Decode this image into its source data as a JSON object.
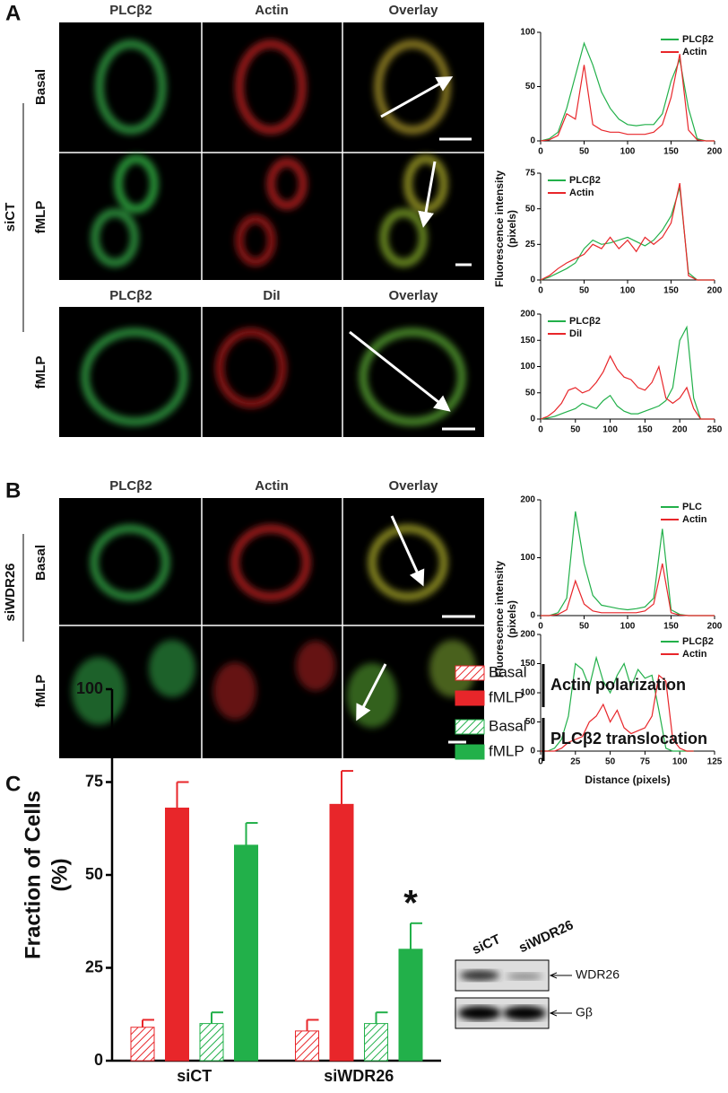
{
  "panel_a": {
    "label": "A",
    "columns": [
      "PLCβ2",
      "Actin",
      "Overlay"
    ],
    "columns_dil": [
      "PLCβ2",
      "DiI",
      "Overlay"
    ],
    "group_label": "siCT",
    "rows": [
      "Basal",
      "fMLP",
      "fMLP"
    ]
  },
  "panel_b": {
    "label": "B",
    "columns": [
      "PLCβ2",
      "Actin",
      "Overlay"
    ],
    "group_label": "siWDR26",
    "rows": [
      "Basal",
      "fMLP"
    ]
  },
  "panel_c": {
    "label": "C"
  },
  "profile_y_label": [
    "Fluorescence intensity",
    "(pixels)"
  ],
  "profile_x_label": "Distance (pixels)",
  "blot": {
    "lanes": [
      "siCT",
      "siWDR26"
    ],
    "bands": [
      "WDR26",
      "Gβ"
    ]
  },
  "chart_data": [
    {
      "type": "line",
      "legend": "upper right",
      "xlim": [
        0,
        200
      ],
      "xticks": [
        0,
        50,
        100,
        150,
        200
      ],
      "ylim": [
        0,
        100
      ],
      "yticks": [
        0,
        50,
        100
      ],
      "x": [
        0,
        10,
        20,
        30,
        40,
        50,
        60,
        70,
        80,
        90,
        100,
        110,
        120,
        130,
        140,
        150,
        160,
        170,
        180,
        190,
        200
      ],
      "series": [
        {
          "name": "PLCβ2",
          "color": "#22b04a",
          "values": [
            0,
            2,
            8,
            30,
            60,
            90,
            70,
            45,
            30,
            20,
            15,
            14,
            15,
            15,
            25,
            55,
            75,
            30,
            2,
            0,
            0
          ]
        },
        {
          "name": "Actin",
          "color": "#e8262a",
          "values": [
            0,
            1,
            5,
            25,
            20,
            70,
            15,
            10,
            8,
            8,
            6,
            6,
            6,
            8,
            15,
            40,
            80,
            10,
            1,
            0,
            0
          ]
        }
      ]
    },
    {
      "type": "line",
      "legend": "upper left",
      "xlim": [
        0,
        200
      ],
      "xticks": [
        0,
        50,
        100,
        150,
        200
      ],
      "ylim": [
        0,
        75
      ],
      "yticks": [
        0,
        25,
        50,
        75
      ],
      "x": [
        0,
        10,
        20,
        30,
        40,
        50,
        60,
        70,
        80,
        90,
        100,
        110,
        120,
        130,
        140,
        150,
        160,
        170,
        180,
        190,
        200
      ],
      "series": [
        {
          "name": "PLCβ2",
          "color": "#22b04a",
          "values": [
            0,
            2,
            5,
            8,
            12,
            22,
            28,
            25,
            26,
            28,
            30,
            27,
            24,
            28,
            35,
            45,
            65,
            5,
            0,
            0,
            0
          ]
        },
        {
          "name": "Actin",
          "color": "#e8262a",
          "values": [
            0,
            3,
            8,
            12,
            15,
            18,
            25,
            22,
            30,
            22,
            28,
            20,
            30,
            25,
            30,
            40,
            68,
            3,
            0,
            0,
            0
          ]
        }
      ]
    },
    {
      "type": "line",
      "legend": "upper left",
      "xlim": [
        0,
        250
      ],
      "xticks": [
        0,
        50,
        100,
        150,
        200,
        250
      ],
      "ylim": [
        0,
        200
      ],
      "yticks": [
        0,
        50,
        100,
        150,
        200
      ],
      "x": [
        0,
        10,
        20,
        30,
        40,
        50,
        60,
        70,
        80,
        90,
        100,
        110,
        120,
        130,
        140,
        150,
        160,
        170,
        180,
        190,
        200,
        210,
        220,
        230,
        240,
        250
      ],
      "series": [
        {
          "name": "PLCβ2",
          "color": "#22b04a",
          "values": [
            0,
            2,
            5,
            10,
            15,
            20,
            30,
            25,
            20,
            35,
            45,
            25,
            15,
            10,
            10,
            15,
            20,
            25,
            35,
            60,
            150,
            175,
            40,
            0,
            0,
            0
          ]
        },
        {
          "name": "DiI",
          "color": "#e8262a",
          "values": [
            0,
            5,
            15,
            30,
            55,
            60,
            50,
            55,
            70,
            90,
            120,
            95,
            80,
            75,
            60,
            55,
            70,
            100,
            40,
            30,
            40,
            60,
            20,
            0,
            0,
            0
          ]
        }
      ]
    },
    {
      "type": "line",
      "legend": "upper right",
      "xlim": [
        0,
        200
      ],
      "xticks": [
        0,
        50,
        100,
        150,
        200
      ],
      "ylim": [
        0,
        200
      ],
      "yticks": [
        0,
        100,
        200
      ],
      "x": [
        0,
        10,
        20,
        30,
        40,
        50,
        60,
        70,
        80,
        90,
        100,
        110,
        120,
        130,
        140,
        150,
        160,
        170,
        180,
        190,
        200
      ],
      "series": [
        {
          "name": "PLC",
          "color": "#22b04a",
          "values": [
            0,
            0,
            5,
            30,
            180,
            90,
            35,
            18,
            15,
            12,
            10,
            12,
            15,
            30,
            150,
            10,
            2,
            0,
            0,
            0,
            0
          ]
        },
        {
          "name": "Actin",
          "color": "#e8262a",
          "values": [
            0,
            0,
            2,
            10,
            60,
            20,
            8,
            5,
            5,
            5,
            5,
            5,
            8,
            20,
            90,
            5,
            1,
            0,
            0,
            0,
            0
          ]
        }
      ]
    },
    {
      "type": "line",
      "legend": "upper right",
      "xlim": [
        0,
        125
      ],
      "xticks": [
        0,
        25,
        50,
        75,
        100,
        125
      ],
      "ylim": [
        0,
        200
      ],
      "yticks": [
        0,
        50,
        100,
        150,
        200
      ],
      "x": [
        0,
        5,
        10,
        15,
        20,
        25,
        30,
        35,
        40,
        45,
        50,
        55,
        60,
        65,
        70,
        75,
        80,
        85,
        90,
        95,
        100,
        105,
        110
      ],
      "series": [
        {
          "name": "PLCβ2",
          "color": "#22b04a",
          "values": [
            0,
            0,
            5,
            20,
            60,
            150,
            140,
            110,
            160,
            120,
            100,
            130,
            150,
            110,
            140,
            125,
            130,
            70,
            5,
            0,
            0,
            0,
            0
          ]
        },
        {
          "name": "Actin",
          "color": "#e8262a",
          "values": [
            0,
            0,
            0,
            5,
            15,
            20,
            25,
            50,
            60,
            80,
            50,
            70,
            40,
            30,
            35,
            40,
            60,
            130,
            120,
            20,
            5,
            0,
            0
          ]
        }
      ]
    },
    {
      "type": "bar",
      "y_label": [
        "Fraction of Cells",
        "(%)"
      ],
      "categories": [
        "siCT",
        "siWDR26"
      ],
      "ylim": [
        0,
        100
      ],
      "yticks": [
        0,
        25,
        50,
        75,
        100
      ],
      "legend_groups": [
        "Actin polarization",
        "PLCβ2 translocation"
      ],
      "annotation": "*",
      "series": [
        {
          "name": "Basal",
          "color": "#e8262a",
          "hatched": true,
          "values": [
            9,
            8
          ],
          "errors": [
            2,
            3
          ]
        },
        {
          "name": "fMLP",
          "color": "#e8262a",
          "hatched": false,
          "values": [
            68,
            69
          ],
          "errors": [
            7,
            9
          ]
        },
        {
          "name": "Basal",
          "color": "#22b04a",
          "hatched": true,
          "values": [
            10,
            10
          ],
          "errors": [
            3,
            3
          ]
        },
        {
          "name": "fMLP",
          "color": "#22b04a",
          "hatched": false,
          "values": [
            58,
            30
          ],
          "errors": [
            6,
            7
          ]
        }
      ]
    }
  ]
}
